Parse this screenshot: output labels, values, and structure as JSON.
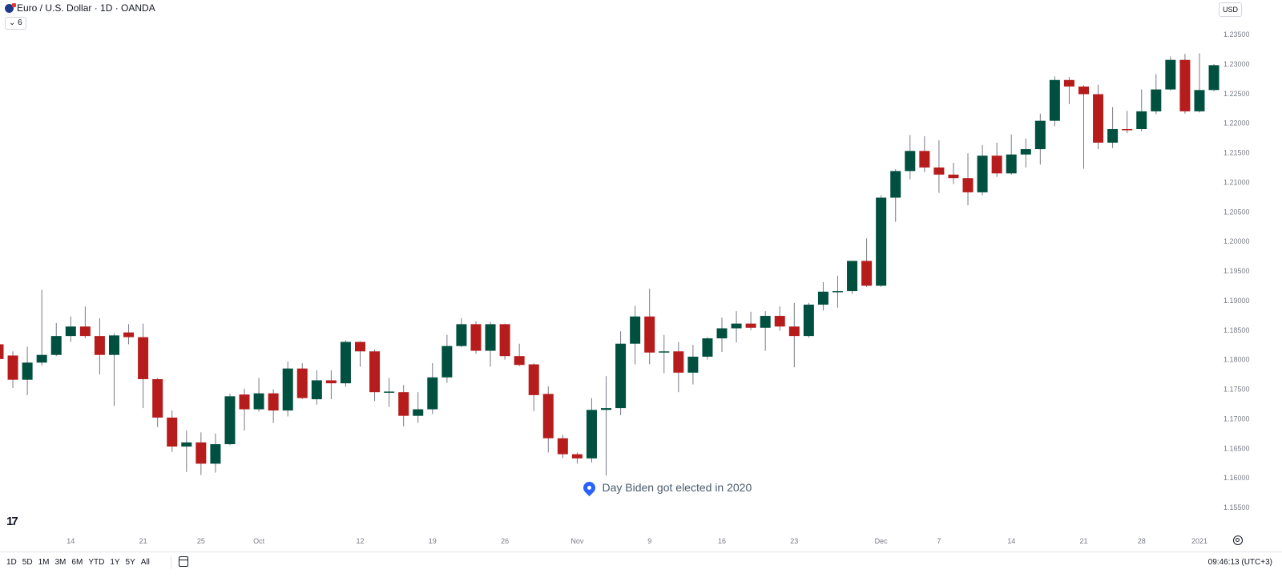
{
  "header": {
    "title": "Euro / U.S. Dollar · 1D · OANDA",
    "indicator_badge": "6",
    "currency": "USD"
  },
  "annotation": {
    "text": "Day Biden got elected in 2020",
    "icon": "map-pin-icon",
    "color": "#2962ff"
  },
  "bottom": {
    "ranges": [
      "1D",
      "5D",
      "1M",
      "3M",
      "6M",
      "YTD",
      "1Y",
      "5Y",
      "All"
    ],
    "clock": "09:46:13 (UTC+3)"
  },
  "colors": {
    "up": "#00503f",
    "down": "#b71c1c",
    "wick": "#787b86"
  },
  "chart_data": {
    "type": "candlestick",
    "ylim": [
      1.1525,
      1.2365
    ],
    "yticks": [
      "1.15500",
      "1.16000",
      "1.16500",
      "1.17000",
      "1.17500",
      "1.18000",
      "1.18500",
      "1.19000",
      "1.19500",
      "1.20000",
      "1.20500",
      "1.21000",
      "1.21500",
      "1.22000",
      "1.22500",
      "1.23000",
      "1.23500"
    ],
    "xticks": [
      {
        "label": "14",
        "bar": 5
      },
      {
        "label": "21",
        "bar": 10
      },
      {
        "label": "25",
        "bar": 14
      },
      {
        "label": "Oct",
        "bar": 18
      },
      {
        "label": "12",
        "bar": 25
      },
      {
        "label": "19",
        "bar": 30
      },
      {
        "label": "26",
        "bar": 35
      },
      {
        "label": "Nov",
        "bar": 40
      },
      {
        "label": "9",
        "bar": 45
      },
      {
        "label": "16",
        "bar": 50
      },
      {
        "label": "23",
        "bar": 55
      },
      {
        "label": "Dec",
        "bar": 61
      },
      {
        "label": "7",
        "bar": 65
      },
      {
        "label": "14",
        "bar": 70
      },
      {
        "label": "21",
        "bar": 75
      },
      {
        "label": "28",
        "bar": 79
      },
      {
        "label": "2021",
        "bar": 83
      }
    ],
    "annotation_bar": 41,
    "ohlc": [
      [
        1.1826,
        1.1835,
        1.1795,
        1.1801
      ],
      [
        1.1807,
        1.1814,
        1.1752,
        1.1766
      ],
      [
        1.1766,
        1.1822,
        1.174,
        1.1795
      ],
      [
        1.1795,
        1.1918,
        1.179,
        1.1808
      ],
      [
        1.1808,
        1.1862,
        1.1806,
        1.184
      ],
      [
        1.184,
        1.1873,
        1.183,
        1.1856
      ],
      [
        1.1856,
        1.189,
        1.1836,
        1.184
      ],
      [
        1.184,
        1.187,
        1.1775,
        1.1808
      ],
      [
        1.1808,
        1.1845,
        1.1722,
        1.1841
      ],
      [
        1.1846,
        1.186,
        1.1826,
        1.1838
      ],
      [
        1.1838,
        1.1861,
        1.1718,
        1.1767
      ],
      [
        1.1767,
        1.1769,
        1.1686,
        1.1702
      ],
      [
        1.1702,
        1.1714,
        1.1644,
        1.1653
      ],
      [
        1.1653,
        1.168,
        1.161,
        1.166
      ],
      [
        1.166,
        1.1677,
        1.1605,
        1.1624
      ],
      [
        1.1624,
        1.1675,
        1.1609,
        1.1657
      ],
      [
        1.1657,
        1.1742,
        1.1655,
        1.1738
      ],
      [
        1.1741,
        1.1751,
        1.168,
        1.1716
      ],
      [
        1.1716,
        1.1769,
        1.1712,
        1.1743
      ],
      [
        1.1743,
        1.175,
        1.1693,
        1.1714
      ],
      [
        1.1714,
        1.1797,
        1.1704,
        1.1785
      ],
      [
        1.1785,
        1.1794,
        1.1733,
        1.1735
      ],
      [
        1.1733,
        1.1782,
        1.1724,
        1.1765
      ],
      [
        1.1765,
        1.1782,
        1.1733,
        1.176
      ],
      [
        1.176,
        1.1833,
        1.1754,
        1.183
      ],
      [
        1.183,
        1.1831,
        1.1788,
        1.1814
      ],
      [
        1.1814,
        1.1817,
        1.173,
        1.1745
      ],
      [
        1.1745,
        1.1769,
        1.172,
        1.1746
      ],
      [
        1.1745,
        1.1757,
        1.1687,
        1.1705
      ],
      [
        1.1705,
        1.1745,
        1.1693,
        1.1716
      ],
      [
        1.1716,
        1.1794,
        1.1708,
        1.177
      ],
      [
        1.177,
        1.1842,
        1.1761,
        1.1823
      ],
      [
        1.1823,
        1.187,
        1.1821,
        1.186
      ],
      [
        1.186,
        1.1865,
        1.181,
        1.1815
      ],
      [
        1.1815,
        1.1864,
        1.1788,
        1.186
      ],
      [
        1.186,
        1.1861,
        1.18,
        1.1806
      ],
      [
        1.1806,
        1.1827,
        1.1789,
        1.1791
      ],
      [
        1.1792,
        1.1794,
        1.1713,
        1.174
      ],
      [
        1.1742,
        1.1755,
        1.1643,
        1.1667
      ],
      [
        1.1667,
        1.1673,
        1.1633,
        1.164
      ],
      [
        1.164,
        1.1643,
        1.1624,
        1.1633
      ],
      [
        1.1633,
        1.1735,
        1.1626,
        1.1715
      ],
      [
        1.1715,
        1.1772,
        1.1604,
        1.1718
      ],
      [
        1.1718,
        1.1848,
        1.1706,
        1.1827
      ],
      [
        1.1827,
        1.1891,
        1.1792,
        1.1873
      ],
      [
        1.1873,
        1.192,
        1.1792,
        1.1812
      ],
      [
        1.1813,
        1.1842,
        1.1777,
        1.1814
      ],
      [
        1.1814,
        1.183,
        1.1745,
        1.1778
      ],
      [
        1.1778,
        1.1825,
        1.1758,
        1.1805
      ],
      [
        1.1805,
        1.1838,
        1.18,
        1.1836
      ],
      [
        1.1836,
        1.1871,
        1.1813,
        1.1853
      ],
      [
        1.1853,
        1.1882,
        1.1829,
        1.1861
      ],
      [
        1.1861,
        1.1881,
        1.185,
        1.1854
      ],
      [
        1.1854,
        1.1882,
        1.1815,
        1.1874
      ],
      [
        1.1874,
        1.189,
        1.1849,
        1.1856
      ],
      [
        1.1856,
        1.1896,
        1.1787,
        1.184
      ],
      [
        1.184,
        1.1896,
        1.1837,
        1.1893
      ],
      [
        1.1893,
        1.1931,
        1.1883,
        1.1915
      ],
      [
        1.1915,
        1.1942,
        1.1888,
        1.1916
      ],
      [
        1.1916,
        1.1967,
        1.1911,
        1.1967
      ],
      [
        1.1967,
        1.2005,
        1.1923,
        1.1925
      ],
      [
        1.1925,
        1.2078,
        1.1923,
        1.2074
      ],
      [
        1.2074,
        1.2122,
        1.2033,
        1.2119
      ],
      [
        1.2119,
        1.218,
        1.2105,
        1.2153
      ],
      [
        1.2153,
        1.2178,
        1.2117,
        1.2125
      ],
      [
        1.2125,
        1.2171,
        1.2082,
        1.2113
      ],
      [
        1.2113,
        1.2133,
        1.2097,
        1.2107
      ],
      [
        1.2107,
        1.2149,
        1.2061,
        1.2083
      ],
      [
        1.2083,
        1.2163,
        1.2078,
        1.2145
      ],
      [
        1.2145,
        1.2167,
        1.2109,
        1.2115
      ],
      [
        1.2115,
        1.2181,
        1.2113,
        1.2147
      ],
      [
        1.2147,
        1.2174,
        1.2125,
        1.2156
      ],
      [
        1.2156,
        1.2216,
        1.213,
        1.2204
      ],
      [
        1.2204,
        1.2279,
        1.2195,
        1.2273
      ],
      [
        1.2273,
        1.2278,
        1.2232,
        1.2262
      ],
      [
        1.2262,
        1.2264,
        1.2123,
        1.2249
      ],
      [
        1.2249,
        1.2265,
        1.2156,
        1.2167
      ],
      [
        1.2167,
        1.2227,
        1.2158,
        1.219
      ],
      [
        1.219,
        1.2221,
        1.2183,
        1.2189
      ],
      [
        1.219,
        1.2257,
        1.2186,
        1.222
      ],
      [
        1.222,
        1.2283,
        1.2215,
        1.2257
      ],
      [
        1.2257,
        1.2313,
        1.2255,
        1.2307
      ],
      [
        1.2307,
        1.2317,
        1.2216,
        1.222
      ],
      [
        1.222,
        1.2318,
        1.2218,
        1.2256
      ],
      [
        1.2256,
        1.23,
        1.2254,
        1.2298
      ]
    ]
  }
}
